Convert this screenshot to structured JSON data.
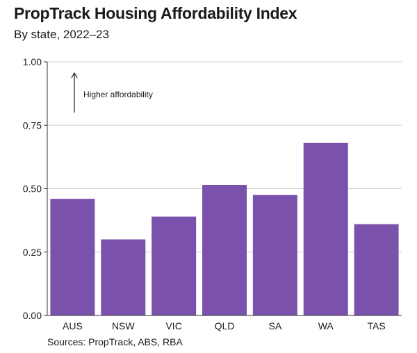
{
  "chart_data": {
    "type": "bar",
    "title": "PropTrack Housing Affordability Index",
    "subtitle": "By state, 2022–23",
    "categories": [
      "AUS",
      "NSW",
      "VIC",
      "QLD",
      "SA",
      "WA",
      "TAS"
    ],
    "values": [
      0.46,
      0.3,
      0.39,
      0.515,
      0.475,
      0.68,
      0.36
    ],
    "ylim": [
      0,
      1
    ],
    "yticks": [
      "0.00",
      "0.25",
      "0.50",
      "0.75",
      "1.00"
    ],
    "grid": true,
    "annotation": "Higher affordability",
    "source": "Sources: PropTrack, ABS, RBA",
    "colors": {
      "bar": "#7B52AB",
      "grid": "#cfcfcf",
      "axis": "#333333"
    }
  }
}
